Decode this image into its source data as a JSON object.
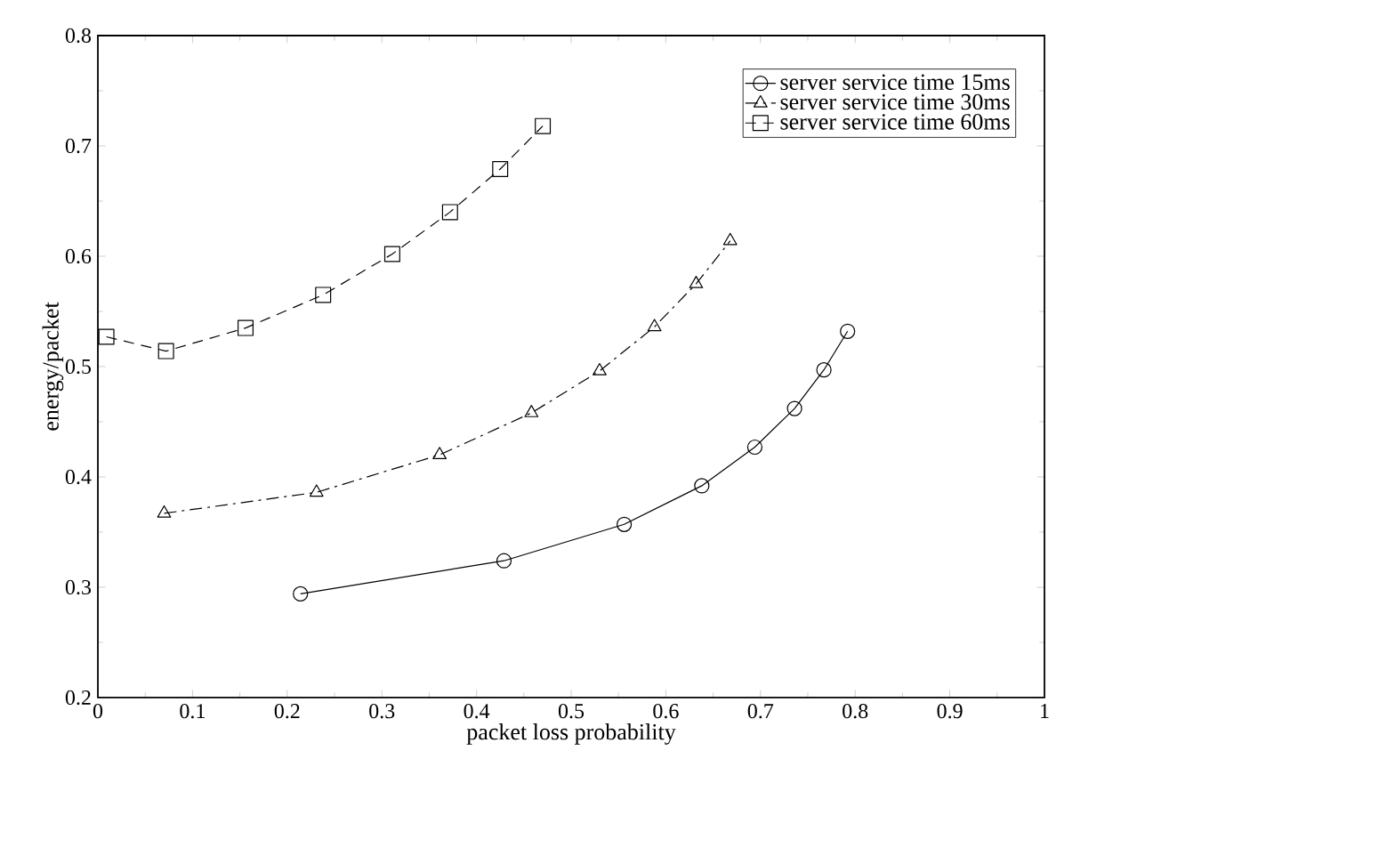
{
  "chart_data": [
    {
      "type": "line",
      "xlabel": "packet loss probability",
      "ylabel": "energy/packet",
      "xlim": [
        0,
        1
      ],
      "ylim": [
        0.2,
        0.8
      ],
      "xticks": [
        0,
        0.1,
        0.2,
        0.3,
        0.4,
        0.5,
        0.6,
        0.7,
        0.8,
        0.9,
        1
      ],
      "yticks": [
        0.2,
        0.3,
        0.4,
        0.5,
        0.6,
        0.7,
        0.8
      ],
      "legend": "top right",
      "grid": false,
      "series": [
        {
          "name": "server service time 15ms",
          "color": "#000000",
          "marker": "circle",
          "line_style": "solid",
          "x": [
            0.214,
            0.429,
            0.556,
            0.638,
            0.694,
            0.736,
            0.767,
            0.792
          ],
          "values": [
            0.294,
            0.324,
            0.357,
            0.392,
            0.427,
            0.462,
            0.497,
            0.532
          ]
        },
        {
          "name": "server service time 30ms",
          "color": "#000000",
          "marker": "triangle",
          "line_style": "dashdot",
          "x": [
            0.07,
            0.231,
            0.361,
            0.458,
            0.53,
            0.588,
            0.632,
            0.668
          ],
          "values": [
            0.367,
            0.386,
            0.42,
            0.458,
            0.496,
            0.536,
            0.575,
            0.614
          ]
        },
        {
          "name": "server service time 60ms",
          "color": "#000000",
          "marker": "square",
          "line_style": "dashed",
          "x": [
            0.009,
            0.072,
            0.156,
            0.238,
            0.311,
            0.372,
            0.425,
            0.47
          ],
          "values": [
            0.527,
            0.514,
            0.535,
            0.565,
            0.602,
            0.64,
            0.679,
            0.718
          ]
        }
      ]
    }
  ]
}
